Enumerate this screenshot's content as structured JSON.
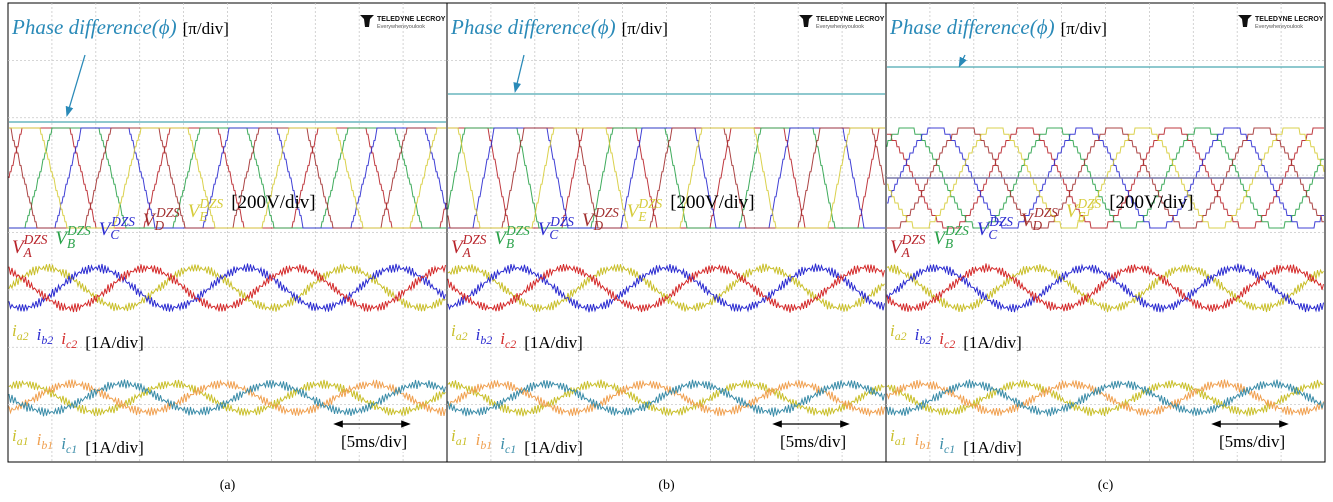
{
  "brand": {
    "name": "TELEDYNE LECROY",
    "tagline": "Everywhereyoulook"
  },
  "phase_label": {
    "text": "Phase difference(ϕ)",
    "unit": "[π/div]"
  },
  "voltage_labels": {
    "items": [
      {
        "base": "V",
        "sub": "A",
        "sup": "DZS",
        "color": "#b8232a"
      },
      {
        "base": "V",
        "sub": "B",
        "sup": "DZS",
        "color": "#2aa24a"
      },
      {
        "base": "V",
        "sub": "C",
        "sup": "DZS",
        "color": "#2b2bd0"
      },
      {
        "base": "V",
        "sub": "D",
        "sup": "DZS",
        "color": "#a23030"
      },
      {
        "base": "V",
        "sub": "E",
        "sup": "DZS",
        "color": "#d6cc3a"
      }
    ],
    "unit": "[200V/div]"
  },
  "current2_labels": {
    "items": [
      {
        "base": "i",
        "sub": "a2",
        "color": "#c9bf2a"
      },
      {
        "base": "i",
        "sub": "b2",
        "color": "#2b2bd0"
      },
      {
        "base": "i",
        "sub": "c2",
        "color": "#d42a2a"
      }
    ],
    "unit": "[1A/div]"
  },
  "current1_labels": {
    "items": [
      {
        "base": "i",
        "sub": "a1",
        "color": "#c9bf2a"
      },
      {
        "base": "i",
        "sub": "b1",
        "color": "#f0a050"
      },
      {
        "base": "i",
        "sub": "c1",
        "color": "#3a8ca8"
      }
    ],
    "unit": "[1A/div]"
  },
  "time_scale": "[5ms/div]",
  "panels": [
    {
      "caption": "(a)"
    },
    {
      "caption": "(b)"
    },
    {
      "caption": "(c)"
    }
  ]
}
